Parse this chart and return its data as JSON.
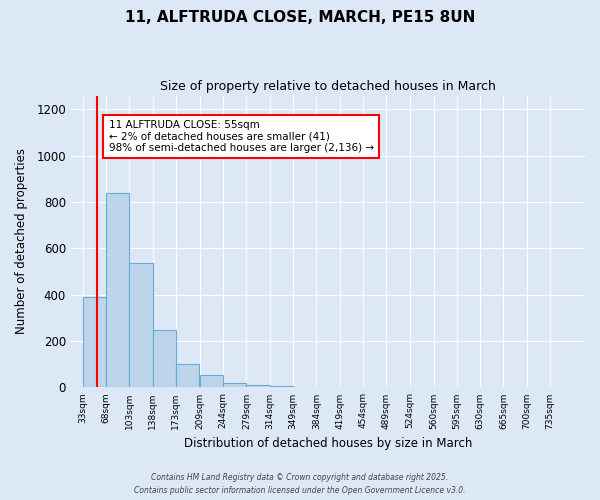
{
  "title": "11, ALFTRUDA CLOSE, MARCH, PE15 8UN",
  "subtitle": "Size of property relative to detached houses in March",
  "xlabel": "Distribution of detached houses by size in March",
  "ylabel": "Number of detached properties",
  "bar_color": "#bdd5ea",
  "bar_edge_color": "#6aaad4",
  "background_color": "#dce8f5",
  "plot_bg_color": "#dce8f5",
  "grid_color": "#ffffff",
  "ylim": [
    0,
    1260
  ],
  "yticks": [
    0,
    200,
    400,
    600,
    800,
    1000,
    1200
  ],
  "bin_labels": [
    "33sqm",
    "68sqm",
    "103sqm",
    "138sqm",
    "173sqm",
    "209sqm",
    "244sqm",
    "279sqm",
    "314sqm",
    "349sqm",
    "384sqm",
    "419sqm",
    "454sqm",
    "489sqm",
    "524sqm",
    "560sqm",
    "595sqm",
    "630sqm",
    "665sqm",
    "700sqm",
    "735sqm"
  ],
  "bin_edges": [
    33,
    68,
    103,
    138,
    173,
    209,
    244,
    279,
    314,
    349,
    384,
    419,
    454,
    489,
    524,
    560,
    595,
    630,
    665,
    700,
    735
  ],
  "bar_values": [
    390,
    840,
    535,
    250,
    100,
    55,
    20,
    10,
    5,
    2,
    1,
    0,
    0,
    0,
    0,
    0,
    0,
    0,
    0,
    0
  ],
  "vline_x": 55,
  "annotation_text_line1": "11 ALFTRUDA CLOSE: 55sqm",
  "annotation_text_line2": "← 2% of detached houses are smaller (41)",
  "annotation_text_line3": "98% of semi-detached houses are larger (2,136) →",
  "footer1": "Contains HM Land Registry data © Crown copyright and database right 2025.",
  "footer2": "Contains public sector information licensed under the Open Government Licence v3.0."
}
